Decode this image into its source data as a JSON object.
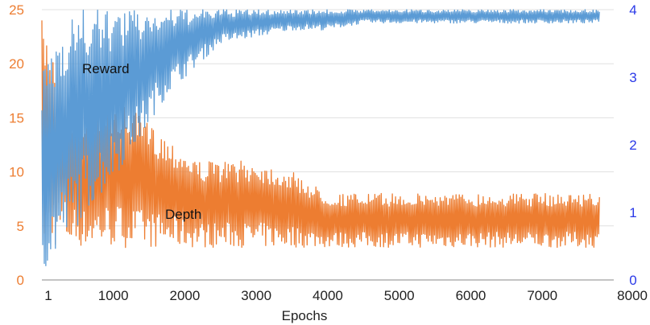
{
  "chart_data": {
    "type": "line",
    "title": "",
    "xlabel": "Epochs",
    "ylabel_left": "",
    "ylabel_right": "",
    "x_ticks": [
      1,
      1000,
      2000,
      3000,
      4000,
      5000,
      6000,
      7000,
      8000
    ],
    "xlim": [
      1,
      8000
    ],
    "y_left_ticks": [
      0,
      5,
      10,
      15,
      20,
      25
    ],
    "y_left_lim": [
      0,
      25
    ],
    "y_right_ticks": [
      0,
      1,
      2,
      3,
      4
    ],
    "y_right_lim": [
      0,
      4
    ],
    "grid": "horizontal",
    "legend": "none",
    "annotations": [
      "Reward",
      "Depth"
    ],
    "colors": {
      "reward": "#5b9bd5",
      "depth": "#ed7d31",
      "left_axis": "#ed7d31",
      "right_axis": "#2a39e8",
      "grid": "#e0e0e0"
    },
    "series": [
      {
        "axis": "right",
        "color": "#5b9bd5",
        "x": [
          1,
          100,
          200,
          300,
          400,
          500,
          600,
          800,
          1000,
          1200,
          1400,
          1600,
          1800,
          2000,
          2200,
          2500,
          3000,
          3500,
          4000,
          4500,
          5000,
          5500,
          6000,
          6500,
          7000,
          7500,
          7800
        ],
        "y_min": [
          0.1,
          0.2,
          0.3,
          0.5,
          0.6,
          0.8,
          1.0,
          1.2,
          1.5,
          1.8,
          2.1,
          2.5,
          2.8,
          3.0,
          3.2,
          3.5,
          3.6,
          3.7,
          3.7,
          3.8,
          3.8,
          3.8,
          3.8,
          3.8,
          3.8,
          3.8,
          3.8
        ],
        "y_max": [
          3.0,
          3.4,
          3.6,
          3.8,
          4.0,
          4.0,
          4.0,
          4.0,
          4.0,
          4.0,
          4.0,
          4.0,
          4.0,
          4.0,
          4.0,
          4.0,
          4.0,
          4.0,
          4.0,
          4.0,
          4.0,
          4.0,
          4.0,
          4.0,
          4.0,
          4.0,
          4.0
        ]
      },
      {
        "axis": "left",
        "color": "#ed7d31",
        "x": [
          1,
          100,
          200,
          300,
          400,
          500,
          600,
          800,
          1000,
          1200,
          1400,
          1600,
          1800,
          2000,
          2200,
          2500,
          3000,
          3500,
          4000,
          4500,
          5000,
          5500,
          6000,
          6500,
          7000,
          7500,
          7800
        ],
        "y_min": [
          3,
          3,
          3,
          3,
          3,
          3,
          3,
          3,
          3,
          3,
          3,
          3,
          3,
          3,
          3,
          3,
          3,
          3,
          3,
          3,
          3,
          3,
          3,
          3,
          3,
          3,
          3
        ],
        "y_max": [
          24,
          23,
          21,
          19,
          17,
          16,
          15,
          17,
          17,
          16,
          15,
          14,
          13,
          12,
          11,
          11,
          11,
          10,
          8,
          8,
          8,
          8,
          8,
          8,
          8,
          8,
          8
        ]
      }
    ]
  }
}
